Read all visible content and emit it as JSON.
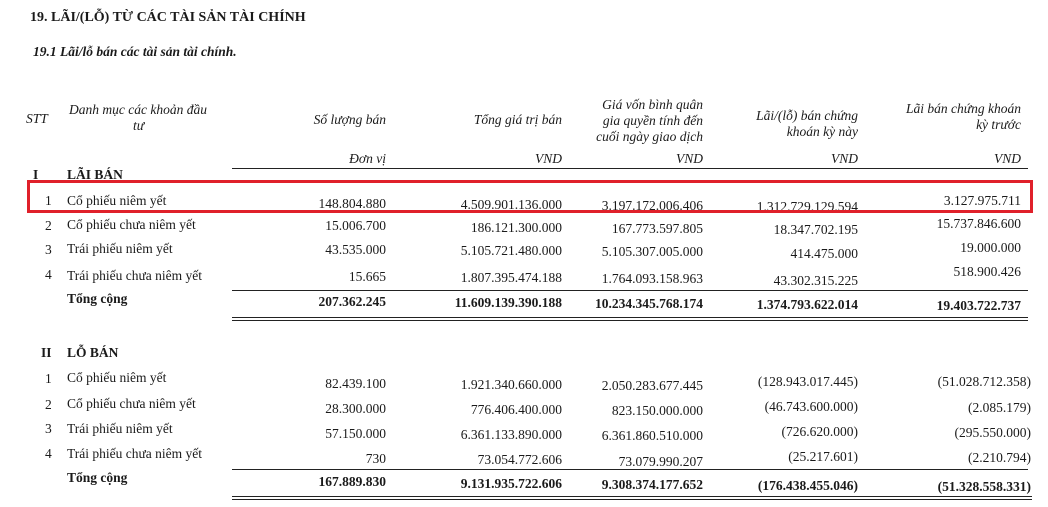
{
  "section_title": "19. LÃI/(LỖ) TỪ CÁC TÀI SẢN TÀI CHÍNH",
  "subsection_title": "19.1    Lãi/lỗ bán các tài sản tài chính.",
  "headers": {
    "stt": "STT",
    "category": [
      "Danh mục các khoản đầu",
      "tư"
    ],
    "quantity": "Số lượng bán",
    "total_value": "Tổng giá trị bán",
    "cost": [
      "Giá vốn bình quân",
      "gia quyền tính đến",
      "cuối ngày giao dịch"
    ],
    "profit_current": [
      "Lãi/(lỗ) bán chứng",
      "khoán kỳ này"
    ],
    "profit_prior": [
      "Lãi bán chứng khoán",
      "kỳ trước"
    ]
  },
  "units": {
    "quantity": "Đơn vị",
    "total_value": "VND",
    "cost": "VND",
    "profit_current": "VND",
    "profit_prior": "VND"
  },
  "section_gain": {
    "roman": "I",
    "label": "LÃI BÁN",
    "rows": [
      {
        "stt": "1",
        "name": "Cổ phiếu  niêm yết",
        "qty": "148.804.880",
        "value": "4.509.901.136.000",
        "cost": "3.197.172.006.406",
        "current": "1.312.729.129.594",
        "prior": "3.127.975.711"
      },
      {
        "stt": "2",
        "name": "Cổ phiếu chưa niêm yết",
        "qty": "15.006.700",
        "value": "186.121.300.000",
        "cost": "167.773.597.805",
        "current": "18.347.702.195",
        "prior": "15.737.846.600"
      },
      {
        "stt": "3",
        "name": "Trái phiếu niêm yết",
        "qty": "43.535.000",
        "value": "5.105.721.480.000",
        "cost": "5.105.307.005.000",
        "current": "414.475.000",
        "prior": "19.000.000"
      },
      {
        "stt": "4",
        "name": "Trái phiếu chưa niêm yết",
        "qty": "15.665",
        "value": "1.807.395.474.188",
        "cost": "1.764.093.158.963",
        "current": "43.302.315.225",
        "prior": "518.900.426"
      }
    ],
    "total": {
      "label": "Tổng cộng",
      "qty": "207.362.245",
      "value": "11.609.139.390.188",
      "cost": "10.234.345.768.174",
      "current": "1.374.793.622.014",
      "prior": "19.403.722.737"
    }
  },
  "section_loss": {
    "roman": "II",
    "label": "LỖ BÁN",
    "rows": [
      {
        "stt": "1",
        "name": "Cổ phiếu  niêm yết",
        "qty": "82.439.100",
        "value": "1.921.340.660.000",
        "cost": "2.050.283.677.445",
        "current": "(128.943.017.445)",
        "prior": "(51.028.712.358)"
      },
      {
        "stt": "2",
        "name": "Cổ phiếu chưa niêm yết",
        "qty": "28.300.000",
        "value": "776.406.400.000",
        "cost": "823.150.000.000",
        "current": "(46.743.600.000)",
        "prior": "(2.085.179)"
      },
      {
        "stt": "3",
        "name": "Trái phiếu niêm yết",
        "qty": "57.150.000",
        "value": "6.361.133.890.000",
        "cost": "6.361.860.510.000",
        "current": "(726.620.000)",
        "prior": "(295.550.000)"
      },
      {
        "stt": "4",
        "name": "Trái phiếu chưa niêm yết",
        "qty": "730",
        "value": "73.054.772.606",
        "cost": "73.079.990.207",
        "current": "(25.217.601)",
        "prior": "(2.210.794)"
      }
    ],
    "total": {
      "label": "Tổng cộng",
      "qty": "167.889.830",
      "value": "9.131.935.722.606",
      "cost": "9.308.374.177.652",
      "current": "(176.438.455.046)",
      "prior": "(51.328.558.331)"
    }
  },
  "highlight_color": "#e0202a"
}
